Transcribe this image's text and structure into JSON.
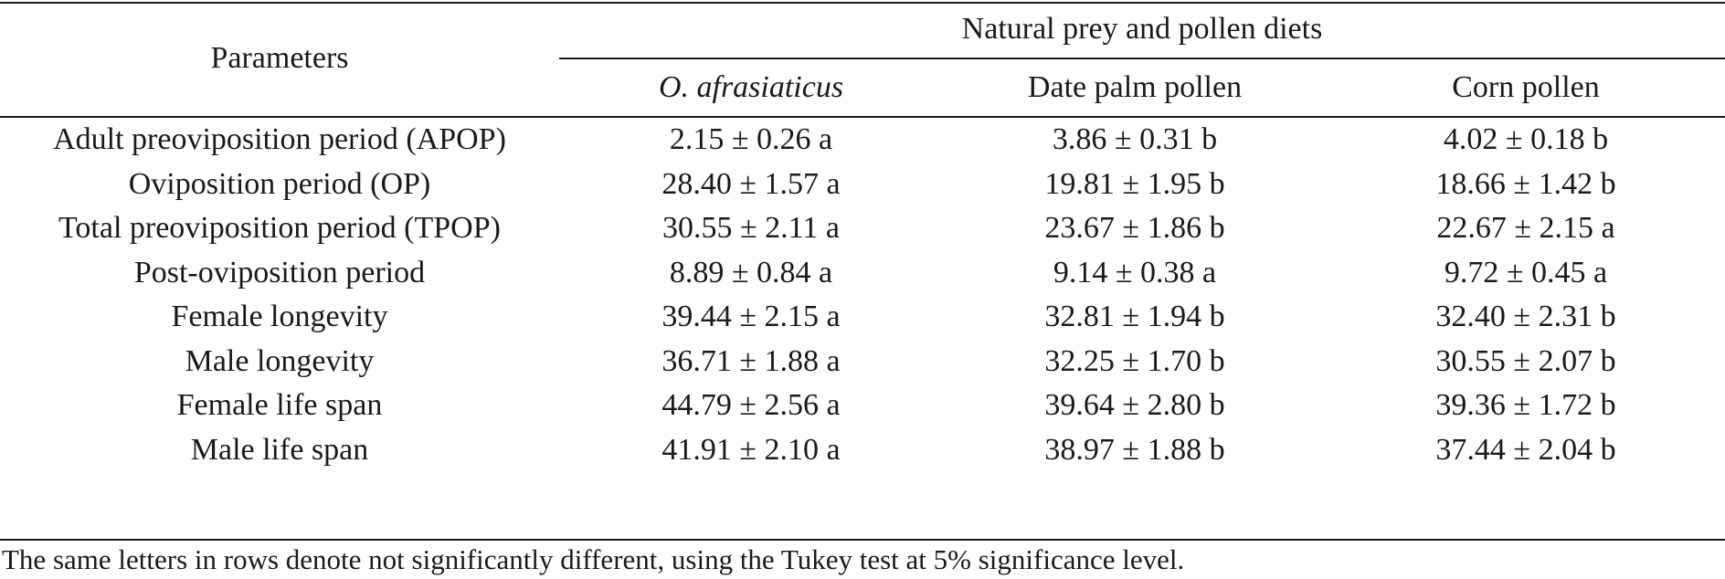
{
  "table": {
    "header": {
      "param_label": "Parameters",
      "group_label": "Natural prey and pollen diets",
      "columns": [
        "O. afrasiaticus",
        "Date palm pollen",
        "Corn pollen"
      ]
    },
    "rows": [
      {
        "label": "Adult preoviposition period (APOP)",
        "values": [
          "2.15 ± 0.26 a",
          "3.86 ± 0.31 b",
          "4.02 ± 0.18 b"
        ]
      },
      {
        "label": "Oviposition period (OP)",
        "values": [
          "28.40 ± 1.57 a",
          "19.81 ± 1.95 b",
          "18.66 ± 1.42 b"
        ]
      },
      {
        "label": "Total preoviposition period (TPOP)",
        "values": [
          "30.55 ± 2.11 a",
          "23.67 ± 1.86 b",
          "22.67 ± 2.15 a"
        ]
      },
      {
        "label": "Post-oviposition period",
        "values": [
          "8.89 ± 0.84 a",
          "9.14 ± 0.38 a",
          "9.72 ± 0.45 a"
        ]
      },
      {
        "label": "Female longevity",
        "values": [
          "39.44 ± 2.15 a",
          "32.81 ± 1.94 b",
          "32.40 ± 2.31 b"
        ]
      },
      {
        "label": "Male longevity",
        "values": [
          "36.71 ± 1.88 a",
          "32.25 ± 1.70 b",
          "30.55 ± 2.07 b"
        ]
      },
      {
        "label": "Female life span",
        "values": [
          "44.79 ± 2.56 a",
          "39.64 ± 2.80 b",
          "39.36 ± 1.72 b"
        ]
      },
      {
        "label": "Male life span",
        "values": [
          "41.91 ± 2.10 a",
          "38.97 ± 1.88 b",
          "37.44 ± 2.04 b"
        ]
      }
    ],
    "footnote": "The same letters in rows denote not significantly different, using the Tukey test at 5% significance level."
  }
}
